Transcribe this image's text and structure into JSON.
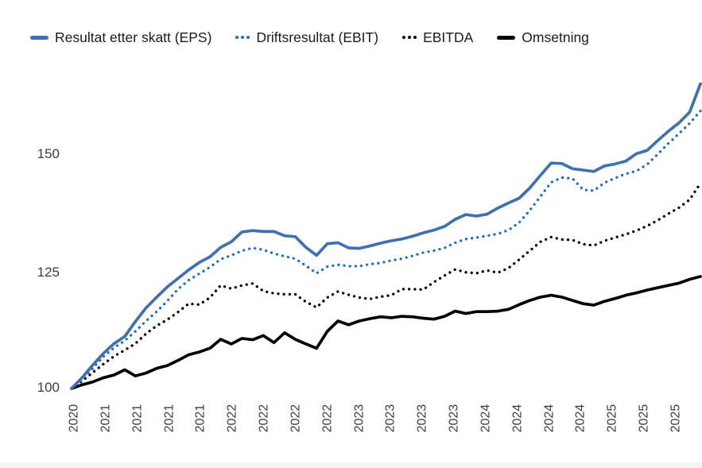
{
  "colors": {
    "eps_blue": "#4070b4",
    "ebit_blue": "#1f6ec5",
    "black": "#000000",
    "axis_text": "#3d3d3d",
    "legend_text": "#1b1b1b",
    "bottom_strip": "#f4f4f4"
  },
  "chart_data": {
    "type": "line",
    "title": "",
    "description": "Indexed development (base 100) of consensus estimates: earnings per share, EBIT, EBITDA and revenue, late 2020 to late 2025",
    "legend_position": "top",
    "grid": false,
    "x_axis": {
      "tick_unit": "quarter",
      "label_rotation_deg": -90,
      "tick_labels": [
        "2020",
        "2021",
        "2021",
        "2021",
        "2021",
        "2022",
        "2022",
        "2022",
        "2022",
        "2023",
        "2023",
        "2023",
        "2023",
        "2024",
        "2024",
        "2024",
        "2024",
        "2025",
        "2025",
        "2025"
      ]
    },
    "y_axis": {
      "ticks": [
        100,
        125,
        150
      ],
      "range": [
        97,
        167
      ]
    },
    "index_base": 100,
    "sampling": {
      "start_quarter": -0.08,
      "step_quarter": 0.3366,
      "note": "values sampled at uniform time steps; quarter 0 = first x tick (2020)"
    },
    "series": [
      {
        "name": "Resultat etter skatt (EPS)",
        "color": "#4070b4",
        "line_style": "solid",
        "values": [
          100.0,
          102.3,
          105.0,
          107.5,
          109.6,
          111.1,
          114.3,
          117.2,
          119.5,
          121.7,
          123.5,
          125.3,
          126.9,
          128.1,
          130.1,
          131.3,
          133.4,
          133.7,
          133.5,
          133.5,
          132.6,
          132.4,
          130.1,
          128.4,
          130.9,
          131.1,
          130.0,
          129.9,
          130.4,
          131.0,
          131.5,
          131.9,
          132.5,
          133.2,
          133.8,
          134.6,
          136.1,
          137.1,
          136.8,
          137.2,
          138.5,
          139.6,
          140.6,
          142.8,
          145.5,
          148.1,
          148.0,
          146.9,
          146.6,
          146.3,
          147.5,
          147.9,
          148.5,
          150.1,
          150.8,
          152.9,
          154.9,
          156.7,
          159.0,
          165.0
        ]
      },
      {
        "name": "Driftsresultat (EBIT)",
        "color": "#1f6ec5",
        "line_style": "dotted",
        "values": [
          100.0,
          101.9,
          104.3,
          106.8,
          108.7,
          110.2,
          112.2,
          114.4,
          116.4,
          118.7,
          121.2,
          123.1,
          124.5,
          125.9,
          127.6,
          128.4,
          129.4,
          130.0,
          129.6,
          128.8,
          128.2,
          127.7,
          126.2,
          124.6,
          126.0,
          126.4,
          126.1,
          126.1,
          126.5,
          126.8,
          127.3,
          127.7,
          128.3,
          129.0,
          129.4,
          130.0,
          131.1,
          131.9,
          132.2,
          132.6,
          133.0,
          133.8,
          135.4,
          138.0,
          141.0,
          144.0,
          145.0,
          144.8,
          142.4,
          142.2,
          143.9,
          144.9,
          145.8,
          146.4,
          147.8,
          150.0,
          152.3,
          154.4,
          156.6,
          159.2
        ]
      },
      {
        "name": "EBITDA",
        "color": "#000000",
        "line_style": "dotted",
        "values": [
          100.0,
          101.6,
          103.4,
          105.2,
          106.9,
          108.2,
          109.6,
          111.7,
          113.4,
          114.7,
          116.3,
          118.1,
          117.9,
          119.4,
          122.0,
          121.3,
          122.0,
          122.4,
          120.8,
          120.3,
          120.1,
          120.1,
          118.5,
          117.3,
          119.4,
          120.7,
          120.0,
          119.4,
          119.1,
          119.6,
          119.9,
          121.2,
          121.2,
          121.1,
          122.7,
          124.1,
          125.4,
          124.8,
          124.6,
          125.2,
          124.7,
          125.7,
          127.5,
          129.4,
          131.3,
          132.3,
          131.8,
          131.7,
          130.8,
          130.5,
          131.5,
          132.2,
          132.9,
          133.7,
          134.7,
          135.9,
          137.3,
          138.6,
          140.3,
          143.8
        ]
      },
      {
        "name": "Omsetning",
        "color": "#000000",
        "line_style": "solid",
        "values": [
          100.0,
          100.8,
          101.4,
          102.3,
          102.9,
          104.0,
          102.7,
          103.3,
          104.3,
          104.9,
          106.0,
          107.2,
          107.8,
          108.6,
          110.5,
          109.5,
          110.7,
          110.4,
          111.3,
          109.8,
          111.9,
          110.5,
          109.5,
          108.6,
          112.2,
          114.4,
          113.6,
          114.4,
          114.9,
          115.3,
          115.1,
          115.4,
          115.3,
          115.0,
          114.8,
          115.4,
          116.5,
          116.0,
          116.4,
          116.4,
          116.5,
          116.9,
          117.9,
          118.8,
          119.5,
          119.9,
          119.5,
          118.8,
          118.1,
          117.8,
          118.6,
          119.2,
          119.9,
          120.4,
          121.0,
          121.5,
          122.0,
          122.5,
          123.3,
          123.9
        ]
      }
    ]
  }
}
